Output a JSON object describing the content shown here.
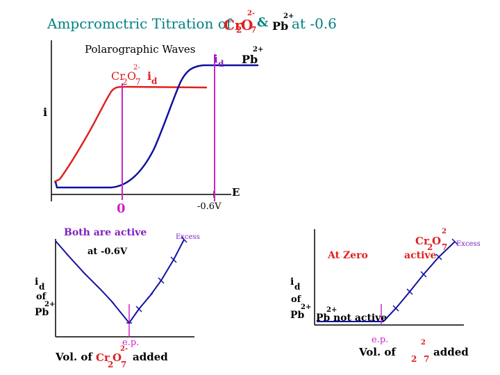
{
  "title": {
    "prefix": "Ampcromctric Titration of",
    "ion1": "Cr",
    "ion1_sub1": "2",
    "ion1_mid": "O",
    "ion1_sub2": "7",
    "ion1_charge": "2-",
    "amp": "&",
    "ion2": "Pb",
    "ion2_charge": "2+",
    "suffix": "at  -0.6"
  },
  "top_panel": {
    "heading": "Polarographic Waves",
    "y_axis": "i",
    "x_axis": "E",
    "id_left": "i",
    "id_left_sub": "d",
    "id_right": "i",
    "id_right_sub": "d",
    "pb_label": "Pb",
    "pb_charge": "2+",
    "cr_label": "Cr",
    "cr_sub1": "2",
    "cr_o": "O",
    "cr_sub2": "7",
    "cr_charge": "2-",
    "tick_zero": "0",
    "tick_neg": "-0.6V"
  },
  "bottom_left": {
    "heading": "Both are active",
    "subheading": "at -0.6V",
    "excess": "Excess",
    "y_label_1": "i",
    "y_label_1_sub": "d",
    "y_label_2": "of",
    "y_label_3": "Pb",
    "y_label_3_charge": "2+",
    "ep": "e.p.",
    "x_label_prefix": "Vol. of",
    "x_label_cr": "Cr",
    "x_label_sub1": "2",
    "x_label_o": "O",
    "x_label_sub2": "7",
    "x_label_charge": "2-",
    "x_label_suffix": "added"
  },
  "bottom_right": {
    "heading": "At Zero",
    "cr_label": "Cr",
    "cr_sub1": "2",
    "cr_o": "O",
    "cr_sub2": "7",
    "cr_charge": "2",
    "excess": "Excess",
    "active": "active",
    "pb_label": "Pb",
    "pb_charge": "2+",
    "not_active": "not active",
    "y_label_1": "i",
    "y_label_1_sub": "d",
    "y_label_2": "of",
    "y_label_3": "Pb",
    "y_label_3_charge": "2+",
    "ep": "e.p.",
    "x_label_prefix": "Vol. of",
    "x_label_sub1": "2",
    "x_label_sub2": "7",
    "x_label_charge": "2",
    "x_label_suffix": "added"
  },
  "colors": {
    "teal": "#008080",
    "red": "#e02020",
    "blue": "#1010a0",
    "magenta": "#cc22cc",
    "purple": "#8020c0",
    "black": "#000000"
  }
}
